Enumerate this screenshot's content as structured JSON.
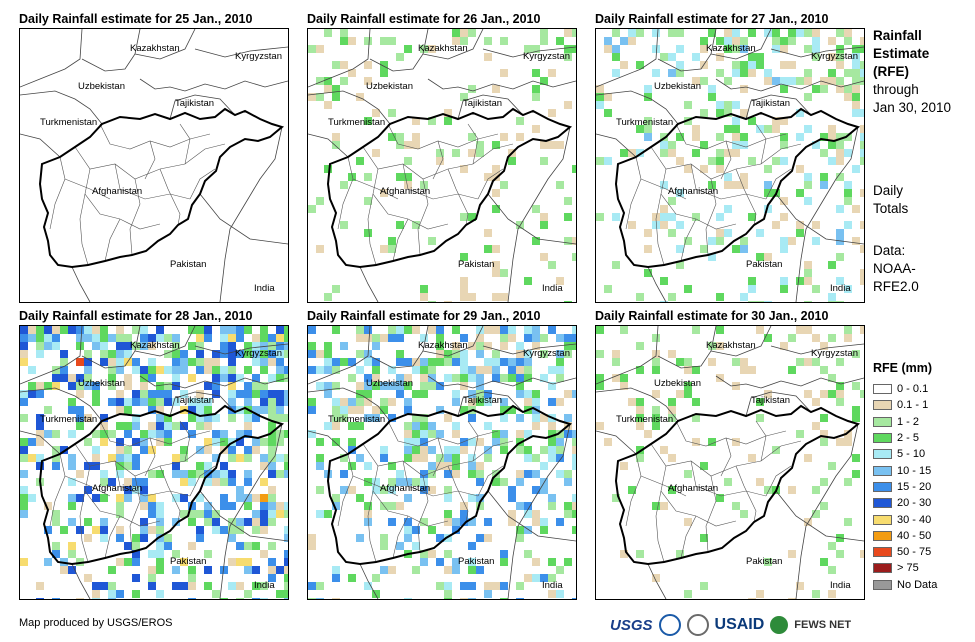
{
  "sidebar": {
    "title_lines": [
      "Rainfall",
      "Estimate",
      "(RFE)"
    ],
    "through_lines": [
      "through",
      "Jan 30, 2010"
    ],
    "daily_lines": [
      "Daily",
      "Totals"
    ],
    "data_lines": [
      "Data:",
      "NOAA-",
      "RFE2.0"
    ]
  },
  "legend": {
    "title": "RFE (mm)",
    "items": [
      {
        "label": "0 - 0.1",
        "color": "#ffffff"
      },
      {
        "label": "0.1 - 1",
        "color": "#e8d6b4"
      },
      {
        "label": "1 - 2",
        "color": "#a6e8a0"
      },
      {
        "label": "2 - 5",
        "color": "#5fd85f"
      },
      {
        "label": "5 - 10",
        "color": "#a8eaf4"
      },
      {
        "label": "10 - 15",
        "color": "#79c1f1"
      },
      {
        "label": "15 - 20",
        "color": "#3c8fea"
      },
      {
        "label": "20 - 30",
        "color": "#1f57d6"
      },
      {
        "label": "30 - 40",
        "color": "#f7dc6f"
      },
      {
        "label": "40 - 50",
        "color": "#f39c12"
      },
      {
        "label": "50 - 75",
        "color": "#e8491d"
      },
      {
        "label": "> 75",
        "color": "#9b1c1c"
      },
      {
        "label": "No Data",
        "color": "#999999"
      }
    ]
  },
  "credit": "Map produced by USGS/EROS",
  "logos": {
    "usgs": "USGS",
    "usaid": "USAID",
    "fews": "FEWS NET"
  },
  "map_labels": {
    "kazakhstan": "Kazakhstan",
    "kyrgyzstan": "Kyrgyzstan",
    "uzbekistan": "Uzbekistan",
    "tajikistan": "Tajikistan",
    "turkmenistan": "Turkmenistan",
    "afghanistan": "Afghanistan",
    "pakistan": "Pakistan",
    "india": "India"
  },
  "panels": [
    {
      "title": "Daily Rainfall estimate for 25 Jan., 2010",
      "intensity": 0
    },
    {
      "title": "Daily Rainfall estimate for 26 Jan., 2010",
      "intensity": 1
    },
    {
      "title": "Daily Rainfall estimate for 27 Jan., 2010",
      "intensity": 2
    },
    {
      "title": "Daily Rainfall estimate for 28 Jan., 2010",
      "intensity": 4
    },
    {
      "title": "Daily Rainfall estimate for 29 Jan., 2010",
      "intensity": 3
    },
    {
      "title": "Daily Rainfall estimate for 30 Jan., 2010",
      "intensity": 1
    }
  ]
}
